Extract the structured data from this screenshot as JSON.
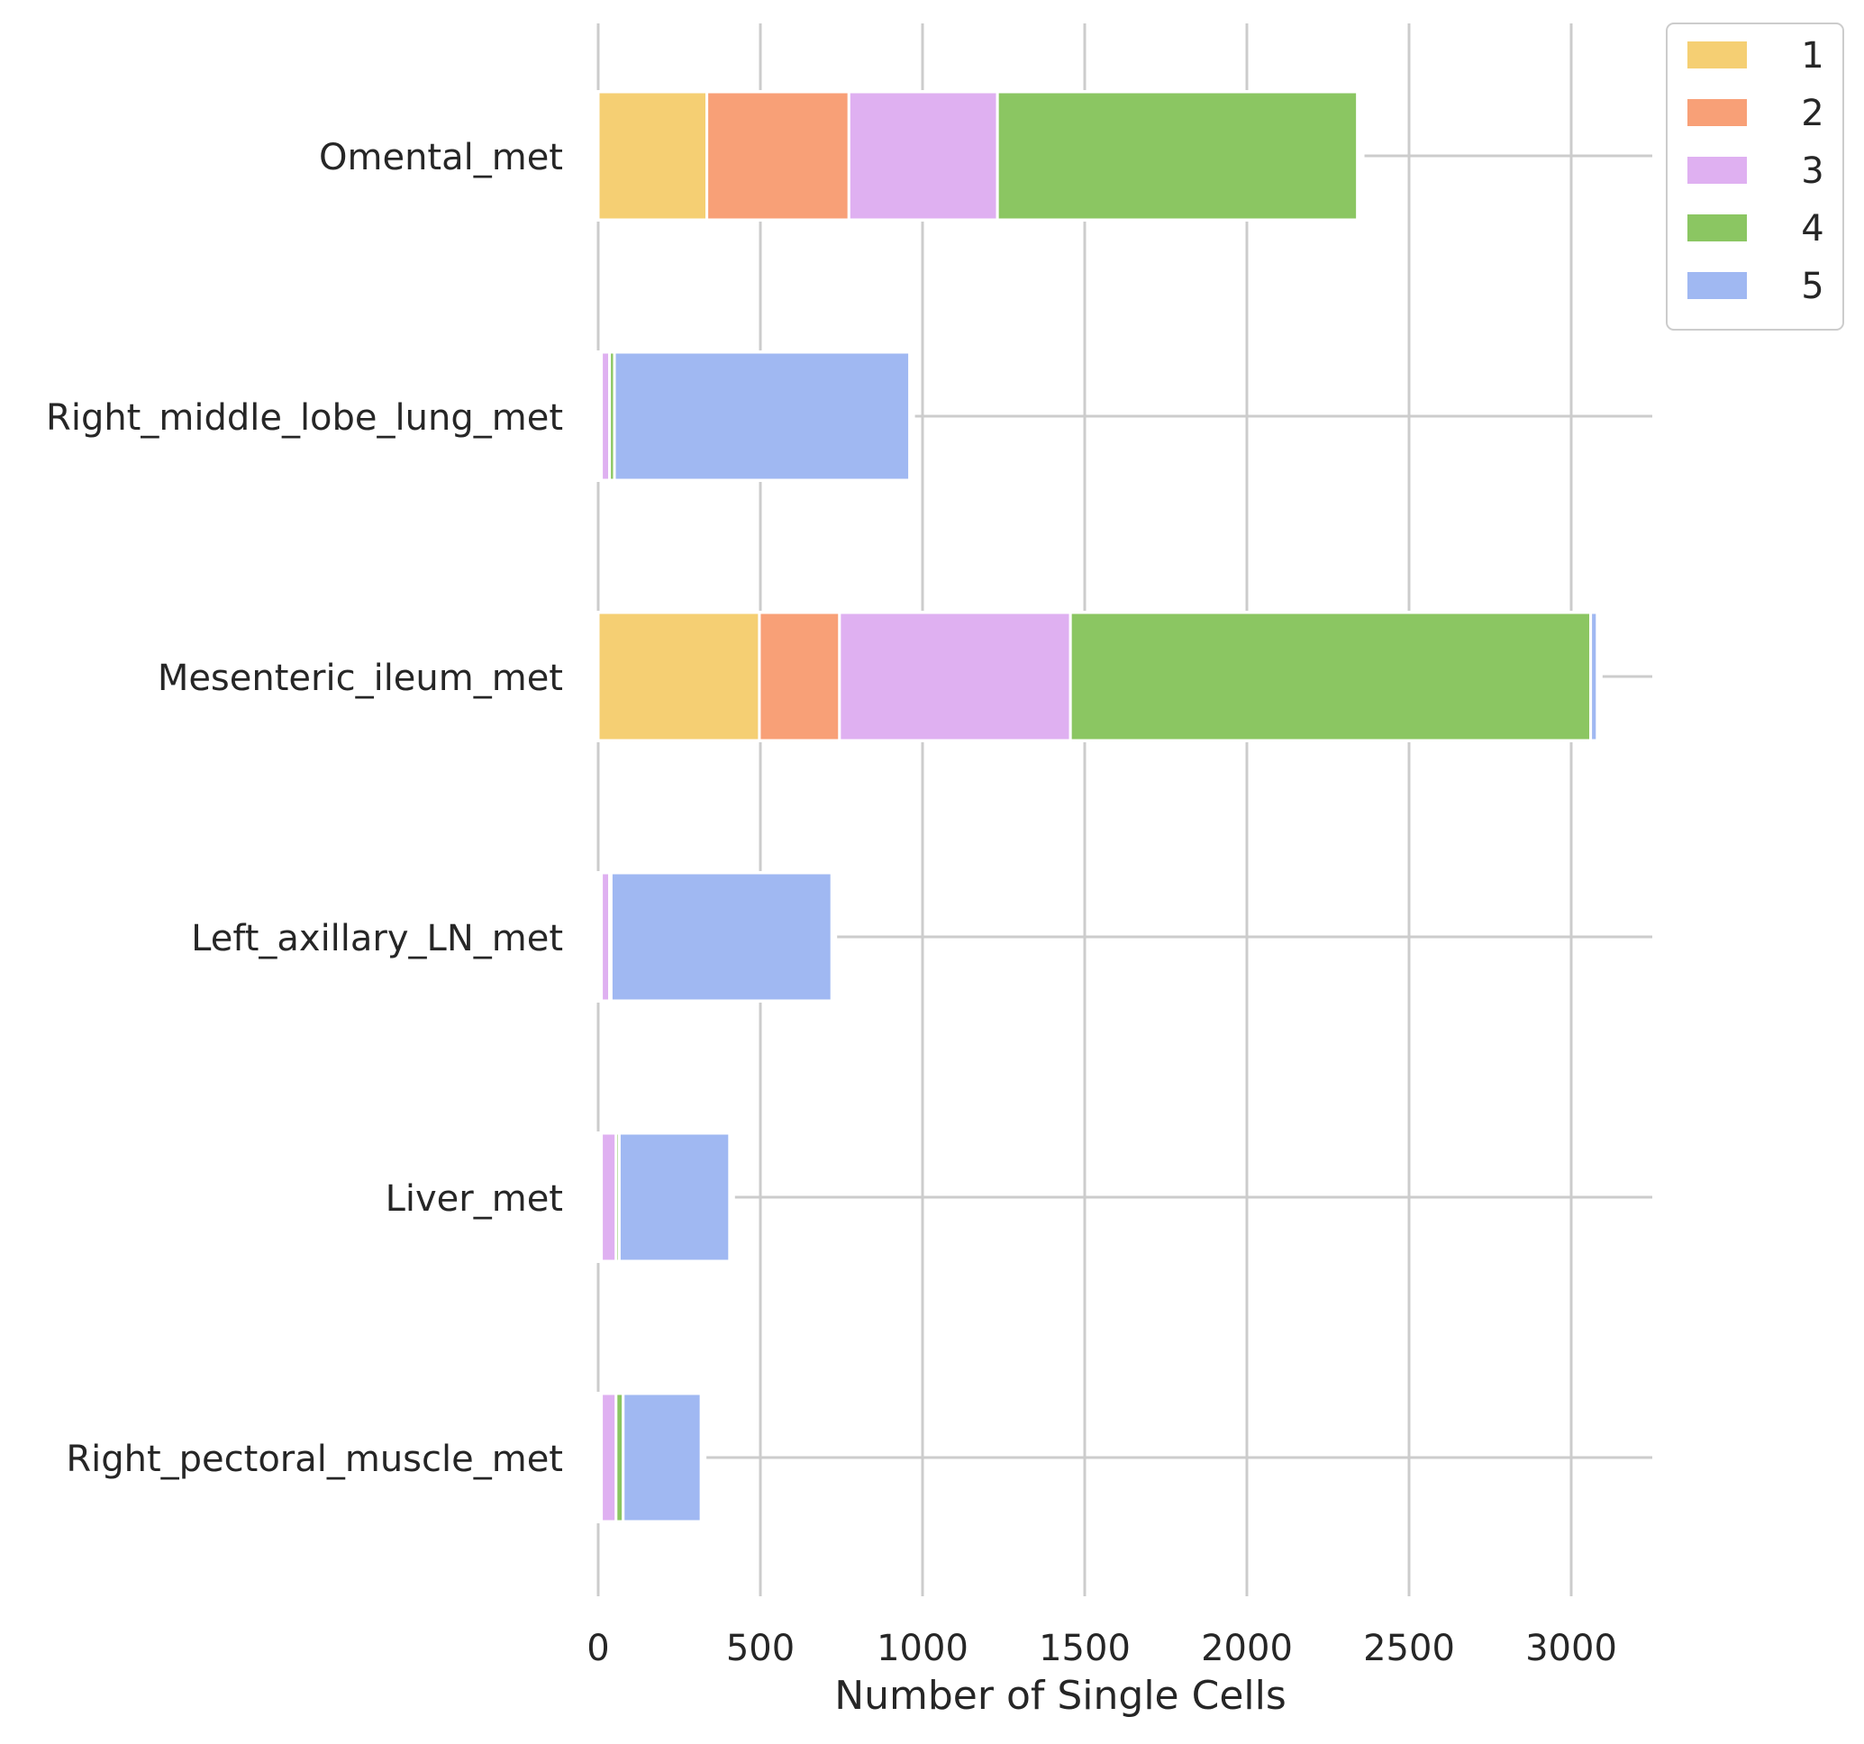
{
  "chart_data": {
    "type": "bar",
    "orientation": "horizontal",
    "stacked": true,
    "title": "",
    "xlabel": "Number of Single Cells",
    "ylabel": "",
    "xlim": [
      0,
      3250
    ],
    "xticks": [
      0,
      500,
      1000,
      1500,
      2000,
      2500,
      3000
    ],
    "xtick_labels": [
      "0",
      "500",
      "1000",
      "1500",
      "2000",
      "2500",
      "3000"
    ],
    "grid": true,
    "legend_position": "top-right, outside",
    "categories": [
      "Omental_met",
      "Right_middle_lobe_lung_met",
      "Mesenteric_ileum_met",
      "Left_axillary_LN_met",
      "Liver_met",
      "Right_pectoral_muscle_met"
    ],
    "series": [
      {
        "name": "1",
        "color": "#f5cf73",
        "values": [
          335,
          5,
          497,
          5,
          5,
          5
        ]
      },
      {
        "name": "2",
        "color": "#f8a077",
        "values": [
          438,
          5,
          247,
          5,
          5,
          5
        ]
      },
      {
        "name": "3",
        "color": "#dfb0f1",
        "values": [
          458,
          25,
          712,
          25,
          45,
          45
        ]
      },
      {
        "name": "4",
        "color": "#8bc662",
        "values": [
          1110,
          15,
          1604,
          5,
          10,
          22
        ]
      },
      {
        "name": "5",
        "color": "#a0b8f2",
        "values": [
          5,
          910,
          20,
          680,
          340,
          240
        ]
      }
    ]
  }
}
